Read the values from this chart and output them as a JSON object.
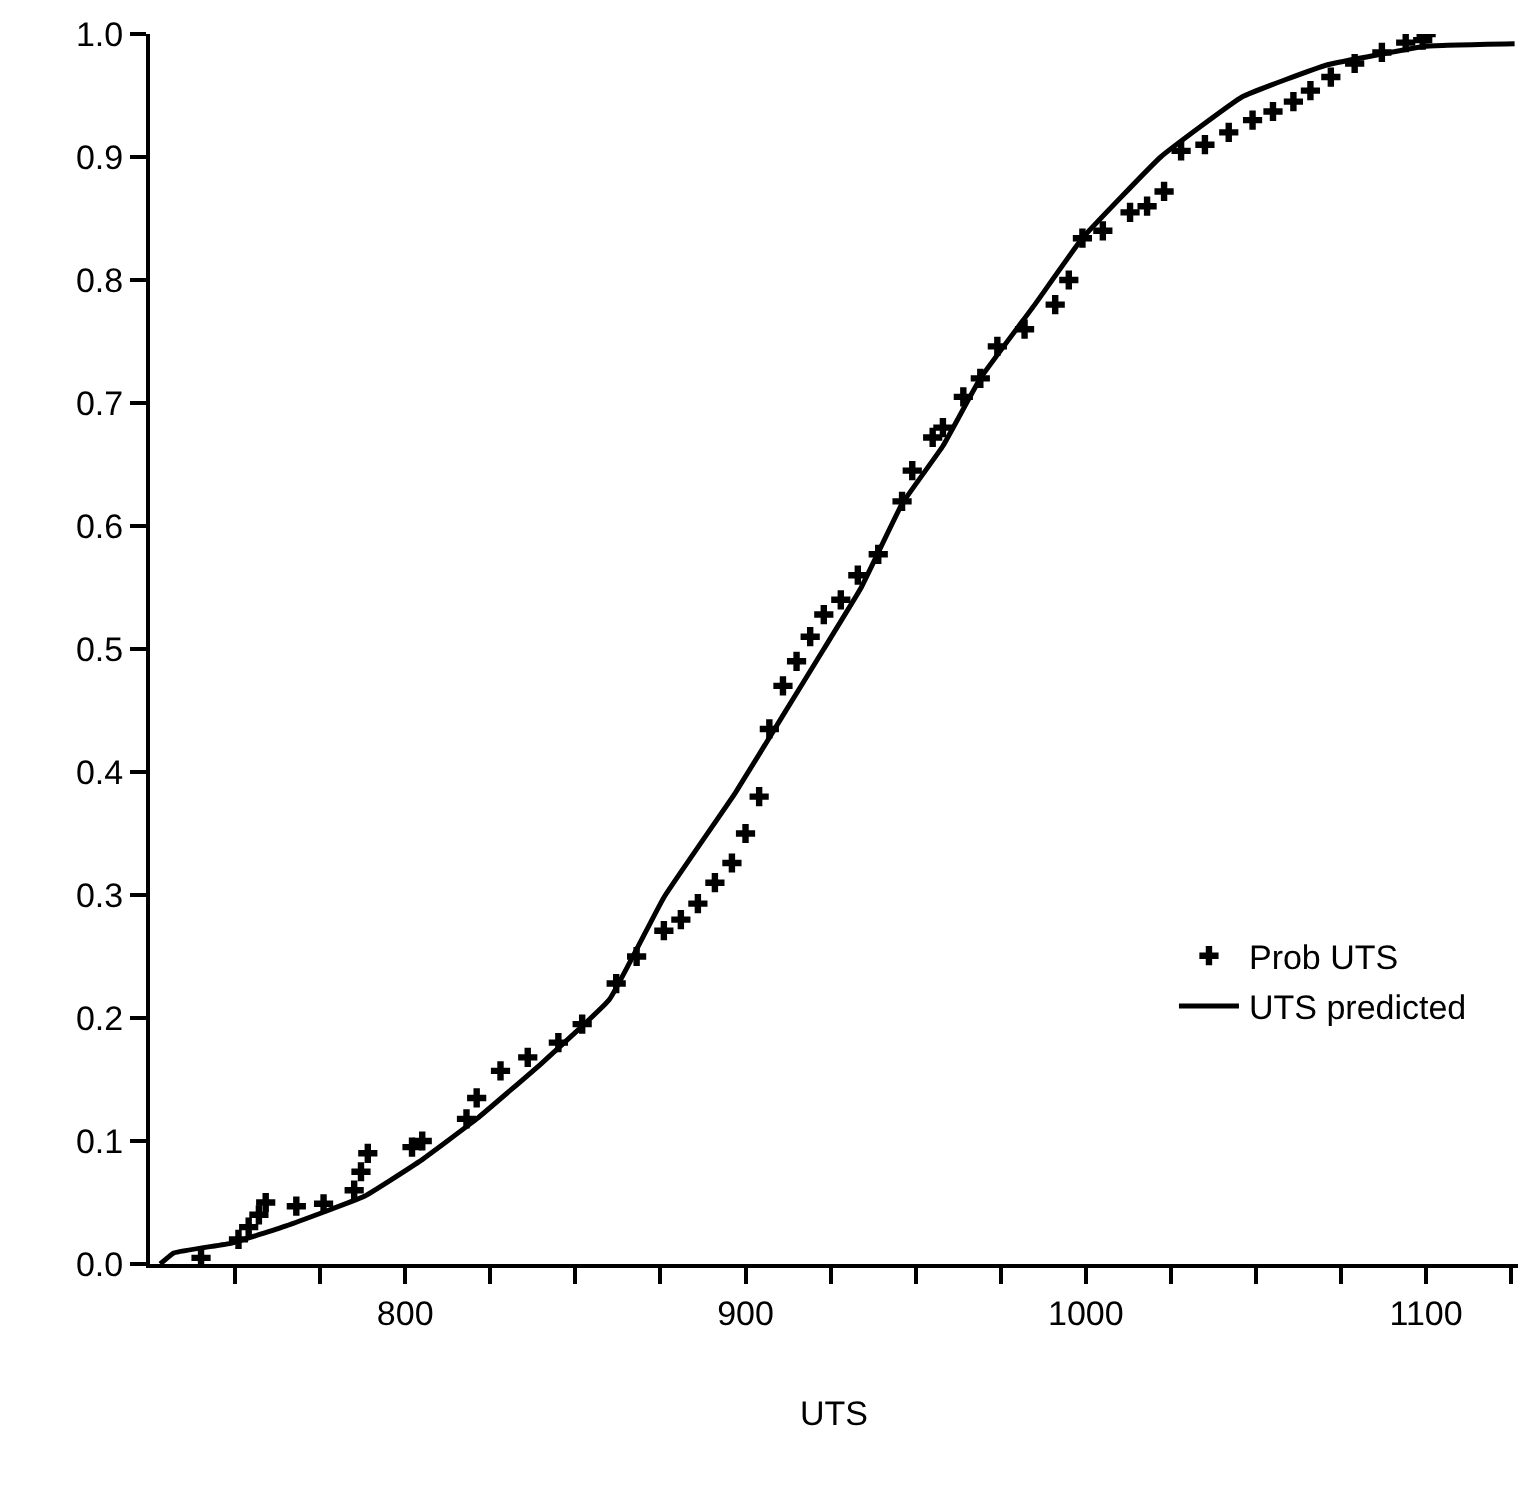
{
  "chart_data": {
    "type": "scatter",
    "xlabel": "UTS",
    "xlim": [
      725,
      1127
    ],
    "ylim": [
      0,
      1.0
    ],
    "xticks": [
      {
        "value": 750,
        "label": null
      },
      {
        "value": 775,
        "label": null
      },
      800,
      {
        "value": 825,
        "label": null
      },
      {
        "value": 850,
        "label": null
      },
      {
        "value": 875,
        "label": null
      },
      900,
      {
        "value": 925,
        "label": null
      },
      {
        "value": 950,
        "label": null
      },
      {
        "value": 975,
        "label": null
      },
      1000,
      {
        "value": 1025,
        "label": null
      },
      {
        "value": 1050,
        "label": null
      },
      {
        "value": 1075,
        "label": null
      },
      1100,
      {
        "value": 1125,
        "label": null
      }
    ],
    "yticks": [
      {
        "value": 0,
        "label": "0.0"
      },
      0.1,
      0.2,
      0.3,
      0.4,
      0.5,
      0.6,
      0.7,
      0.8,
      0.9,
      {
        "value": 1,
        "label": "1.0"
      }
    ],
    "legend": "bottom right",
    "series": [
      {
        "name": "Prob UTS",
        "marker": "cross",
        "color": "#000000",
        "x": [
          740,
          751,
          754,
          757,
          759,
          768,
          776,
          785,
          787,
          789,
          802,
          805,
          818,
          821,
          828,
          836,
          845,
          852,
          862,
          868,
          876,
          881,
          886,
          891,
          896,
          900,
          904,
          907,
          911,
          915,
          919,
          923,
          928,
          933,
          939,
          946,
          949,
          955,
          958,
          964,
          969,
          974,
          982,
          991,
          995,
          999,
          1005,
          1013,
          1018,
          1023,
          1028,
          1035,
          1042,
          1049,
          1055,
          1061,
          1066,
          1072,
          1079,
          1087,
          1094,
          1099,
          1100
        ],
        "values": [
          0.005,
          0.02,
          0.03,
          0.04,
          0.05,
          0.047,
          0.049,
          0.06,
          0.075,
          0.09,
          0.095,
          0.1,
          0.118,
          0.135,
          0.157,
          0.168,
          0.18,
          0.195,
          0.228,
          0.25,
          0.271,
          0.28,
          0.293,
          0.31,
          0.326,
          0.35,
          0.38,
          0.435,
          0.47,
          0.49,
          0.51,
          0.528,
          0.54,
          0.56,
          0.577,
          0.62,
          0.645,
          0.672,
          0.68,
          0.705,
          0.72,
          0.746,
          0.76,
          0.78,
          0.8,
          0.834,
          0.84,
          0.855,
          0.86,
          0.872,
          0.905,
          0.91,
          0.92,
          0.93,
          0.937,
          0.945,
          0.954,
          0.965,
          0.976,
          0.985,
          0.993,
          0.995,
          1.0
        ]
      },
      {
        "name": "UTS predicted",
        "type": "line",
        "line_style": "solid",
        "color": "#000000",
        "x": [
          728,
          732,
          749,
          765,
          788,
          804,
          821,
          840,
          860,
          876,
          897,
          911,
          923,
          934,
          946,
          958,
          969,
          985,
          999,
          1022,
          1046,
          1071,
          1100,
          1126
        ],
        "values": [
          0.0,
          0.009,
          0.017,
          0.031,
          0.055,
          0.083,
          0.118,
          0.163,
          0.215,
          0.298,
          0.383,
          0.446,
          0.5,
          0.55,
          0.618,
          0.665,
          0.72,
          0.78,
          0.834,
          0.9,
          0.949,
          0.975,
          0.99,
          0.992
        ]
      }
    ]
  }
}
